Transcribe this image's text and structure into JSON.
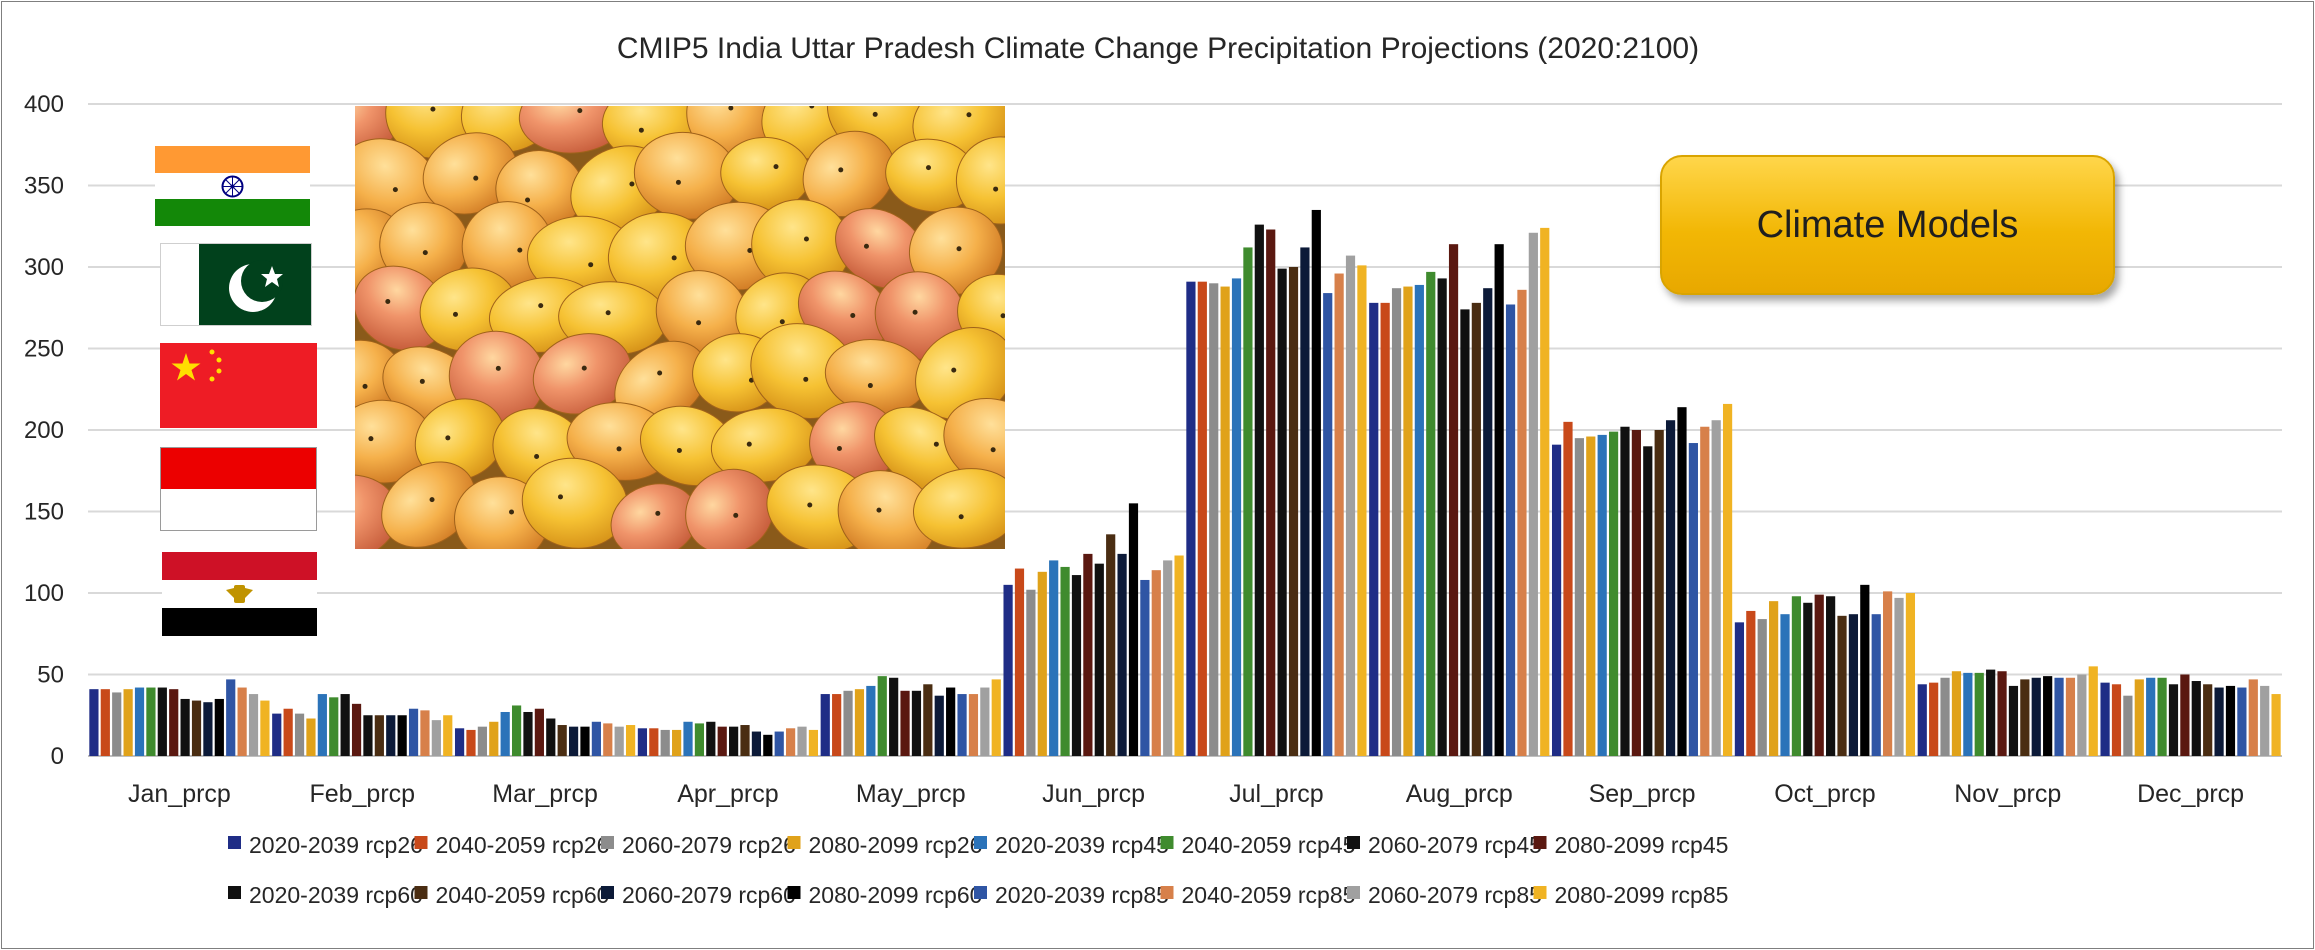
{
  "button": {
    "label": "Climate Models"
  },
  "colors": {
    "gridline": "#d9d9d9",
    "axis": "#bfbfbf",
    "series": [
      "#1f2d86",
      "#c8491a",
      "#8c8c8c",
      "#e0a21a",
      "#2b73b9",
      "#3f8b2e",
      "#111111",
      "#5a1810",
      "#101010",
      "#4a2d12",
      "#0c1a38",
      "#000000",
      "#2f55a4",
      "#d7804a",
      "#a0a0a0",
      "#f0b323"
    ]
  },
  "flags": [
    {
      "name": "india-flag"
    },
    {
      "name": "pakistan-flag"
    },
    {
      "name": "china-flag"
    },
    {
      "name": "indonesia-flag"
    },
    {
      "name": "egypt-flag"
    }
  ],
  "photo": {
    "subject": "mangoes"
  },
  "chart_data": {
    "type": "bar",
    "title": "CMIP5 India Uttar Pradesh Climate Change Precipitation Projections (2020:2100)",
    "xlabel": "",
    "ylabel": "",
    "ylim": [
      0,
      400
    ],
    "yticks": [
      0,
      50,
      100,
      150,
      200,
      250,
      300,
      350,
      400
    ],
    "grid": true,
    "legend_position": "bottom",
    "categories": [
      "Jan_prcp",
      "Feb_prcp",
      "Mar_prcp",
      "Apr_prcp",
      "May_prcp",
      "Jun_prcp",
      "Jul_prcp",
      "Aug_prcp",
      "Sep_prcp",
      "Oct_prcp",
      "Nov_prcp",
      "Dec_prcp"
    ],
    "series": [
      {
        "name": "2020-2039 rcp26",
        "values": [
          41,
          26,
          17,
          17,
          38,
          105,
          291,
          278,
          191,
          82,
          44,
          45
        ]
      },
      {
        "name": "2040-2059 rcp26",
        "values": [
          41,
          29,
          16,
          17,
          38,
          115,
          291,
          278,
          205,
          89,
          45,
          44
        ]
      },
      {
        "name": "2060-2079 rcp26",
        "values": [
          39,
          26,
          18,
          16,
          40,
          102,
          290,
          287,
          195,
          84,
          48,
          37
        ]
      },
      {
        "name": "2080-2099 rcp26",
        "values": [
          41,
          23,
          21,
          16,
          41,
          113,
          288,
          288,
          196,
          95,
          52,
          47
        ]
      },
      {
        "name": "2020-2039 rcp45",
        "values": [
          42,
          38,
          27,
          21,
          43,
          120,
          293,
          289,
          197,
          87,
          51,
          48
        ]
      },
      {
        "name": "2040-2059 rcp45",
        "values": [
          42,
          36,
          31,
          20,
          49,
          116,
          312,
          297,
          199,
          98,
          51,
          48
        ]
      },
      {
        "name": "2060-2079 rcp45",
        "values": [
          42,
          38,
          27,
          21,
          48,
          111,
          326,
          293,
          202,
          94,
          53,
          44
        ]
      },
      {
        "name": "2080-2099 rcp45",
        "values": [
          41,
          32,
          29,
          18,
          40,
          124,
          323,
          314,
          200,
          99,
          52,
          50
        ]
      },
      {
        "name": "2020-2039 rcp60",
        "values": [
          35,
          25,
          23,
          18,
          40,
          118,
          299,
          274,
          190,
          98,
          43,
          46
        ]
      },
      {
        "name": "2040-2059 rcp60",
        "values": [
          34,
          25,
          19,
          19,
          44,
          136,
          300,
          278,
          200,
          86,
          47,
          44
        ]
      },
      {
        "name": "2060-2079 rcp60",
        "values": [
          33,
          25,
          18,
          15,
          37,
          124,
          312,
          287,
          206,
          87,
          48,
          42
        ]
      },
      {
        "name": "2080-2099 rcp60",
        "values": [
          35,
          25,
          18,
          13,
          42,
          155,
          335,
          314,
          214,
          105,
          49,
          43
        ]
      },
      {
        "name": "2020-2039 rcp85",
        "values": [
          47,
          29,
          21,
          15,
          38,
          108,
          284,
          277,
          192,
          87,
          48,
          42
        ]
      },
      {
        "name": "2040-2059 rcp85",
        "values": [
          42,
          28,
          20,
          17,
          38,
          114,
          296,
          286,
          202,
          101,
          48,
          47
        ]
      },
      {
        "name": "2060-2079 rcp85",
        "values": [
          38,
          22,
          18,
          18,
          42,
          120,
          307,
          321,
          206,
          97,
          50,
          43
        ]
      },
      {
        "name": "2080-2099 rcp85",
        "values": [
          34,
          25,
          19,
          16,
          47,
          123,
          301,
          324,
          216,
          100,
          55,
          38
        ]
      }
    ]
  }
}
